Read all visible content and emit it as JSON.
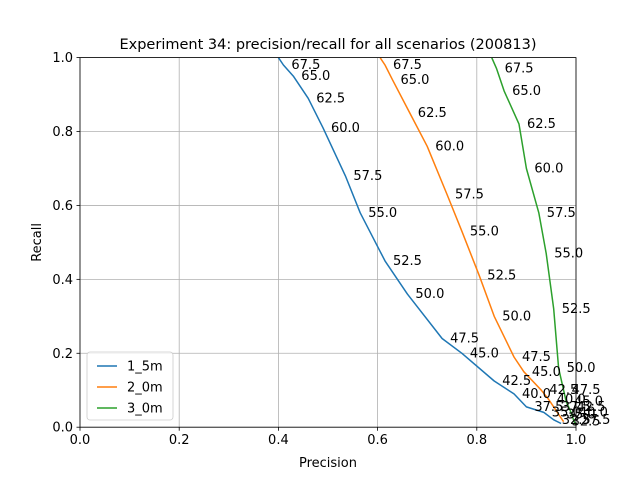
{
  "chart_data": {
    "type": "line",
    "title": "Experiment 34: precision/recall for all scenarios (200813)",
    "xlabel": "Precision",
    "ylabel": "Recall",
    "xlim": [
      0,
      1
    ],
    "ylim": [
      0,
      1
    ],
    "x_ticks": [
      "0.0",
      "0.2",
      "0.4",
      "0.6",
      "0.8",
      "1.0"
    ],
    "y_ticks": [
      "0.0",
      "0.2",
      "0.4",
      "0.6",
      "0.8",
      "1.0"
    ],
    "grid": true,
    "legend_position": "lower-left",
    "series": [
      {
        "name": "1_5m",
        "color": "#1f77b4",
        "points": [
          {
            "x": 0.4,
            "y": 1.0,
            "label": ""
          },
          {
            "x": 0.41,
            "y": 0.98,
            "label": "67.5"
          },
          {
            "x": 0.43,
            "y": 0.95,
            "label": "65.0"
          },
          {
            "x": 0.46,
            "y": 0.89,
            "label": "62.5"
          },
          {
            "x": 0.49,
            "y": 0.81,
            "label": "60.0"
          },
          {
            "x": 0.535,
            "y": 0.68,
            "label": "57.5"
          },
          {
            "x": 0.565,
            "y": 0.58,
            "label": "55.0"
          },
          {
            "x": 0.615,
            "y": 0.45,
            "label": "52.5"
          },
          {
            "x": 0.66,
            "y": 0.36,
            "label": "50.0"
          },
          {
            "x": 0.73,
            "y": 0.24,
            "label": "47.5"
          },
          {
            "x": 0.77,
            "y": 0.2,
            "label": "45.0"
          },
          {
            "x": 0.835,
            "y": 0.125,
            "label": "42.5"
          },
          {
            "x": 0.875,
            "y": 0.09,
            "label": "40.0"
          },
          {
            "x": 0.9,
            "y": 0.055,
            "label": "37.5"
          },
          {
            "x": 0.935,
            "y": 0.04,
            "label": "35.0"
          },
          {
            "x": 0.955,
            "y": 0.02,
            "label": "32.5"
          },
          {
            "x": 0.97,
            "y": 0.01,
            "label": ""
          }
        ]
      },
      {
        "name": "2_0m",
        "color": "#ff7f0e",
        "points": [
          {
            "x": 0.605,
            "y": 1.0,
            "label": ""
          },
          {
            "x": 0.615,
            "y": 0.98,
            "label": "67.5"
          },
          {
            "x": 0.63,
            "y": 0.94,
            "label": "65.0"
          },
          {
            "x": 0.665,
            "y": 0.85,
            "label": "62.5"
          },
          {
            "x": 0.7,
            "y": 0.76,
            "label": "60.0"
          },
          {
            "x": 0.74,
            "y": 0.63,
            "label": "57.5"
          },
          {
            "x": 0.77,
            "y": 0.53,
            "label": "55.0"
          },
          {
            "x": 0.805,
            "y": 0.41,
            "label": "52.5"
          },
          {
            "x": 0.835,
            "y": 0.3,
            "label": "50.0"
          },
          {
            "x": 0.875,
            "y": 0.19,
            "label": "47.5"
          },
          {
            "x": 0.895,
            "y": 0.15,
            "label": "45.0"
          },
          {
            "x": 0.93,
            "y": 0.1,
            "label": "42.5"
          },
          {
            "x": 0.945,
            "y": 0.075,
            "label": "40.0"
          },
          {
            "x": 0.955,
            "y": 0.055,
            "label": "37.5"
          },
          {
            "x": 0.965,
            "y": 0.035,
            "label": "35.0"
          },
          {
            "x": 0.975,
            "y": 0.015,
            "label": "32.5"
          }
        ]
      },
      {
        "name": "3_0m",
        "color": "#2ca02c",
        "points": [
          {
            "x": 0.83,
            "y": 1.0,
            "label": ""
          },
          {
            "x": 0.84,
            "y": 0.97,
            "label": "67.5"
          },
          {
            "x": 0.855,
            "y": 0.91,
            "label": "65.0"
          },
          {
            "x": 0.885,
            "y": 0.82,
            "label": "62.5"
          },
          {
            "x": 0.9,
            "y": 0.7,
            "label": "60.0"
          },
          {
            "x": 0.925,
            "y": 0.58,
            "label": "57.5"
          },
          {
            "x": 0.94,
            "y": 0.47,
            "label": "55.0"
          },
          {
            "x": 0.955,
            "y": 0.32,
            "label": "52.5"
          },
          {
            "x": 0.965,
            "y": 0.16,
            "label": "50.0"
          },
          {
            "x": 0.975,
            "y": 0.1,
            "label": "47.5"
          },
          {
            "x": 0.98,
            "y": 0.07,
            "label": "45.0"
          },
          {
            "x": 0.985,
            "y": 0.055,
            "label": "42.5"
          },
          {
            "x": 0.99,
            "y": 0.04,
            "label": "40.0"
          },
          {
            "x": 0.995,
            "y": 0.02,
            "label": "37.5"
          },
          {
            "x": 1.0,
            "y": 0.005,
            "label": ""
          }
        ]
      }
    ]
  }
}
